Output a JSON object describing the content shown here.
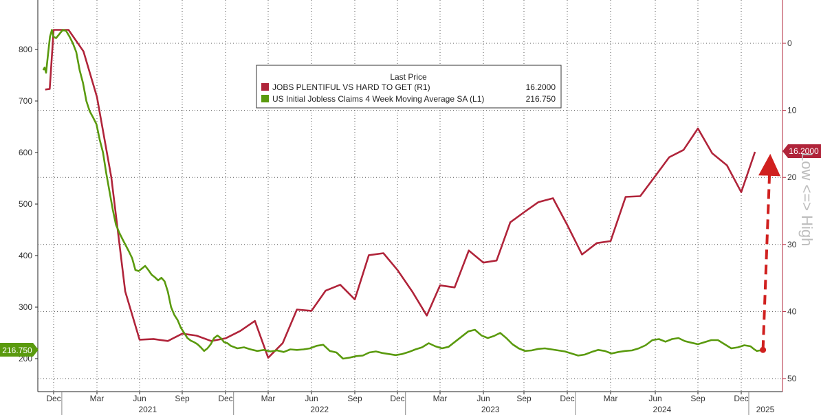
{
  "chart_data": {
    "type": "line",
    "title": "",
    "legend": {
      "header": "Last Price",
      "placement": "top-center",
      "entries": [
        {
          "name": "JOBS PLENTIFUL VS HARD TO GET  (R1)",
          "last": "16.2000",
          "color": "#b0243a"
        },
        {
          "name": "US Initial Jobless Claims 4 Week Moving Average SA  (L1)",
          "last": "216.750",
          "color": "#5a9a0e"
        }
      ]
    },
    "x_axis": {
      "month_labels": [
        "Dec",
        "Mar",
        "Jun",
        "Sep",
        "Dec",
        "Mar",
        "Jun",
        "Sep",
        "Dec",
        "Mar",
        "Jun",
        "Sep",
        "Dec",
        "Mar",
        "Jun",
        "Sep",
        "Dec"
      ],
      "month_dates": [
        "2020-12",
        "2021-03",
        "2021-06",
        "2021-09",
        "2021-12",
        "2022-03",
        "2022-06",
        "2022-09",
        "2022-12",
        "2023-03",
        "2023-06",
        "2023-09",
        "2023-12",
        "2024-03",
        "2024-06",
        "2024-09",
        "2024-12"
      ],
      "year_labels": [
        "2021",
        "2022",
        "2023",
        "2024",
        "2025"
      ]
    },
    "left_axis": {
      "min": 150,
      "max": 860,
      "ticks": [
        200,
        300,
        400,
        500,
        600,
        700,
        800
      ],
      "tick_labels": [
        "200",
        "300",
        "400",
        "500",
        "600",
        "700",
        "800"
      ]
    },
    "right_axis": {
      "inverted": true,
      "min": -5,
      "max": 52,
      "ticks": [
        0,
        10,
        20,
        30,
        40,
        50
      ],
      "tick_labels": [
        "0",
        "10",
        "20",
        "30",
        "40",
        "50"
      ]
    },
    "grid": true,
    "series": [
      {
        "name": "JOBS PLENTIFUL VS HARD TO GET  (R1)",
        "axis": "right",
        "color": "#b0243a",
        "last_label": "16.2000",
        "points": [
          [
            "2020-11-15",
            6.9
          ],
          [
            "2020-12-01",
            6.8
          ],
          [
            "2020-12-15",
            -2
          ],
          [
            "2021-01-15",
            -2
          ],
          [
            "2021-02-15",
            1.2
          ],
          [
            "2021-03-15",
            8
          ],
          [
            "2021-04-15",
            20
          ],
          [
            "2021-05-15",
            37
          ],
          [
            "2021-06-15",
            44.2
          ],
          [
            "2021-07-15",
            44.1
          ],
          [
            "2021-08-15",
            44.4
          ],
          [
            "2021-09-15",
            43.3
          ],
          [
            "2021-10-15",
            43.6
          ],
          [
            "2021-11-15",
            44.4
          ],
          [
            "2021-12-15",
            44.0
          ],
          [
            "2022-01-15",
            42.9
          ],
          [
            "2022-02-15",
            41.4
          ],
          [
            "2022-03-15",
            46.9
          ],
          [
            "2022-04-15",
            44.7
          ],
          [
            "2022-05-15",
            39.7
          ],
          [
            "2022-06-15",
            39.9
          ],
          [
            "2022-07-15",
            36.9
          ],
          [
            "2022-08-15",
            36.0
          ],
          [
            "2022-09-15",
            38.2
          ],
          [
            "2022-10-15",
            31.6
          ],
          [
            "2022-11-15",
            31.3
          ],
          [
            "2022-12-15",
            33.8
          ],
          [
            "2023-01-15",
            37.0
          ],
          [
            "2023-02-15",
            40.6
          ],
          [
            "2023-03-15",
            36.1
          ],
          [
            "2023-04-15",
            36.4
          ],
          [
            "2023-05-15",
            30.9
          ],
          [
            "2023-06-15",
            32.7
          ],
          [
            "2023-07-15",
            32.4
          ],
          [
            "2023-08-15",
            26.7
          ],
          [
            "2023-09-15",
            25.2
          ],
          [
            "2023-10-15",
            23.7
          ],
          [
            "2023-11-15",
            23.1
          ],
          [
            "2023-12-15",
            27.1
          ],
          [
            "2024-01-15",
            31.5
          ],
          [
            "2024-02-15",
            29.8
          ],
          [
            "2024-03-15",
            29.5
          ],
          [
            "2024-04-15",
            22.9
          ],
          [
            "2024-05-15",
            22.8
          ],
          [
            "2024-06-15",
            19.8
          ],
          [
            "2024-07-15",
            17.0
          ],
          [
            "2024-08-15",
            15.9
          ],
          [
            "2024-09-15",
            12.7
          ],
          [
            "2024-10-15",
            16.4
          ],
          [
            "2024-11-15",
            18.2
          ],
          [
            "2024-12-15",
            22.2
          ],
          [
            "2025-01-15",
            16.2
          ]
        ]
      },
      {
        "name": "US Initial Jobless Claims 4 Week Moving Average SA  (L1)",
        "axis": "left",
        "color": "#5a9a0e",
        "last_label": "216.750",
        "points": [
          [
            "2020-11-08",
            760
          ],
          [
            "2020-11-13",
            765
          ],
          [
            "2020-11-18",
            755
          ],
          [
            "2020-11-25",
            790
          ],
          [
            "2020-12-02",
            825
          ],
          [
            "2020-12-09",
            838
          ],
          [
            "2020-12-14",
            825
          ],
          [
            "2020-12-20",
            822
          ],
          [
            "2020-12-27",
            830
          ],
          [
            "2021-01-03",
            838
          ],
          [
            "2021-01-10",
            836
          ],
          [
            "2021-01-17",
            825
          ],
          [
            "2021-01-24",
            812
          ],
          [
            "2021-01-31",
            795
          ],
          [
            "2021-02-07",
            760
          ],
          [
            "2021-02-14",
            735
          ],
          [
            "2021-02-21",
            700
          ],
          [
            "2021-02-28",
            680
          ],
          [
            "2021-03-07",
            668
          ],
          [
            "2021-03-14",
            655
          ],
          [
            "2021-03-21",
            625
          ],
          [
            "2021-03-28",
            600
          ],
          [
            "2021-04-04",
            560
          ],
          [
            "2021-04-11",
            525
          ],
          [
            "2021-04-18",
            490
          ],
          [
            "2021-04-25",
            460
          ],
          [
            "2021-05-02",
            445
          ],
          [
            "2021-05-09",
            432
          ],
          [
            "2021-05-16",
            420
          ],
          [
            "2021-05-23",
            408
          ],
          [
            "2021-05-30",
            395
          ],
          [
            "2021-06-06",
            372
          ],
          [
            "2021-06-13",
            370
          ],
          [
            "2021-06-20",
            375
          ],
          [
            "2021-06-27",
            380
          ],
          [
            "2021-07-04",
            372
          ],
          [
            "2021-07-11",
            363
          ],
          [
            "2021-07-18",
            358
          ],
          [
            "2021-07-25",
            352
          ],
          [
            "2021-08-01",
            357
          ],
          [
            "2021-08-08",
            350
          ],
          [
            "2021-08-15",
            330
          ],
          [
            "2021-08-22",
            300
          ],
          [
            "2021-08-29",
            285
          ],
          [
            "2021-09-05",
            275
          ],
          [
            "2021-09-12",
            260
          ],
          [
            "2021-09-19",
            250
          ],
          [
            "2021-09-26",
            240
          ],
          [
            "2021-10-03",
            235
          ],
          [
            "2021-10-10",
            232
          ],
          [
            "2021-10-17",
            228
          ],
          [
            "2021-10-24",
            222
          ],
          [
            "2021-10-31",
            215
          ],
          [
            "2021-11-07",
            220
          ],
          [
            "2021-11-14",
            228
          ],
          [
            "2021-11-21",
            240
          ],
          [
            "2021-11-28",
            245
          ],
          [
            "2021-12-05",
            240
          ],
          [
            "2021-12-12",
            232
          ],
          [
            "2021-12-19",
            230
          ],
          [
            "2021-12-26",
            225
          ],
          [
            "2022-01-09",
            220
          ],
          [
            "2022-01-23",
            222
          ],
          [
            "2022-02-06",
            218
          ],
          [
            "2022-02-20",
            215
          ],
          [
            "2022-03-06",
            217
          ],
          [
            "2022-03-20",
            214
          ],
          [
            "2022-04-03",
            216
          ],
          [
            "2022-04-17",
            213
          ],
          [
            "2022-05-01",
            218
          ],
          [
            "2022-05-15",
            217
          ],
          [
            "2022-05-29",
            218
          ],
          [
            "2022-06-12",
            220
          ],
          [
            "2022-06-26",
            225
          ],
          [
            "2022-07-10",
            227
          ],
          [
            "2022-07-24",
            215
          ],
          [
            "2022-08-07",
            212
          ],
          [
            "2022-08-21",
            200
          ],
          [
            "2022-09-04",
            202
          ],
          [
            "2022-09-18",
            205
          ],
          [
            "2022-10-02",
            206
          ],
          [
            "2022-10-16",
            212
          ],
          [
            "2022-10-30",
            214
          ],
          [
            "2022-11-13",
            211
          ],
          [
            "2022-11-27",
            209
          ],
          [
            "2022-12-11",
            207
          ],
          [
            "2022-12-25",
            209
          ],
          [
            "2023-01-08",
            213
          ],
          [
            "2023-01-22",
            218
          ],
          [
            "2023-02-05",
            222
          ],
          [
            "2023-02-19",
            230
          ],
          [
            "2023-03-05",
            224
          ],
          [
            "2023-03-19",
            220
          ],
          [
            "2023-04-02",
            223
          ],
          [
            "2023-04-16",
            233
          ],
          [
            "2023-04-30",
            243
          ],
          [
            "2023-05-14",
            253
          ],
          [
            "2023-05-28",
            256
          ],
          [
            "2023-06-11",
            245
          ],
          [
            "2023-06-25",
            240
          ],
          [
            "2023-07-09",
            244
          ],
          [
            "2023-07-23",
            250
          ],
          [
            "2023-08-06",
            240
          ],
          [
            "2023-08-20",
            228
          ],
          [
            "2023-09-03",
            220
          ],
          [
            "2023-09-17",
            215
          ],
          [
            "2023-10-01",
            216
          ],
          [
            "2023-10-15",
            219
          ],
          [
            "2023-10-29",
            220
          ],
          [
            "2023-11-12",
            218
          ],
          [
            "2023-11-26",
            216
          ],
          [
            "2023-12-10",
            214
          ],
          [
            "2023-12-24",
            210
          ],
          [
            "2024-01-07",
            206
          ],
          [
            "2024-01-21",
            208
          ],
          [
            "2024-02-04",
            213
          ],
          [
            "2024-02-18",
            217
          ],
          [
            "2024-03-03",
            215
          ],
          [
            "2024-03-17",
            210
          ],
          [
            "2024-03-31",
            213
          ],
          [
            "2024-04-14",
            215
          ],
          [
            "2024-04-28",
            216
          ],
          [
            "2024-05-12",
            220
          ],
          [
            "2024-05-26",
            226
          ],
          [
            "2024-06-09",
            236
          ],
          [
            "2024-06-23",
            238
          ],
          [
            "2024-07-07",
            233
          ],
          [
            "2024-07-21",
            238
          ],
          [
            "2024-08-04",
            240
          ],
          [
            "2024-08-18",
            234
          ],
          [
            "2024-09-01",
            231
          ],
          [
            "2024-09-15",
            228
          ],
          [
            "2024-09-29",
            232
          ],
          [
            "2024-10-13",
            236
          ],
          [
            "2024-10-27",
            236
          ],
          [
            "2024-11-10",
            228
          ],
          [
            "2024-11-24",
            220
          ],
          [
            "2024-12-08",
            222
          ],
          [
            "2024-12-22",
            226
          ],
          [
            "2025-01-05",
            224
          ],
          [
            "2025-01-12",
            219
          ],
          [
            "2025-01-19",
            215
          ],
          [
            "2025-01-26",
            216
          ],
          [
            "2025-02-02",
            218
          ]
        ]
      }
    ],
    "annotations": [
      {
        "text": "Low <=> High",
        "type": "vertical-text",
        "color": "#bdbdbd"
      },
      {
        "type": "arrow",
        "style": "dashed",
        "color": "#d0201f",
        "from_left_value": 217,
        "from_date": "2025-02-02",
        "to_right_value": 17.3
      }
    ]
  }
}
